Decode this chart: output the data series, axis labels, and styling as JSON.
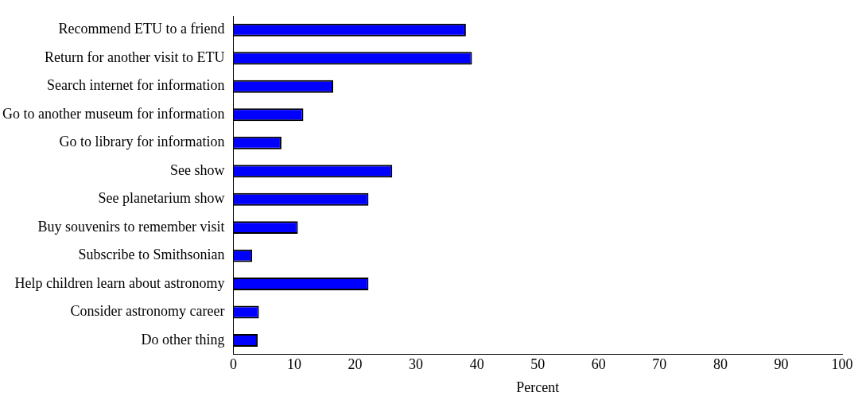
{
  "chart_data": {
    "type": "bar",
    "orientation": "horizontal",
    "xlabel": "Percent",
    "categories": [
      "Recommend ETU to a friend",
      "Return for another visit to ETU",
      "Search internet for information",
      "Go to another museum for information",
      "Go to library for information",
      "See show",
      "See planetarium show",
      "Buy souvenirs to remember visit",
      "Subscribe to Smithsonian",
      "Help children learn about astronomy",
      "Consider astronomy career",
      "Do other thing"
    ],
    "values": [
      38.2,
      39.2,
      16.4,
      11.5,
      7.9,
      26.1,
      22.2,
      10.6,
      3.1,
      22.2,
      4.2,
      4.0
    ],
    "color": "#0000ff",
    "xlim": [
      0,
      100
    ],
    "xticks": [
      0,
      10,
      20,
      30,
      40,
      50,
      60,
      70,
      80,
      90,
      100
    ],
    "grid": false,
    "legend": false
  }
}
